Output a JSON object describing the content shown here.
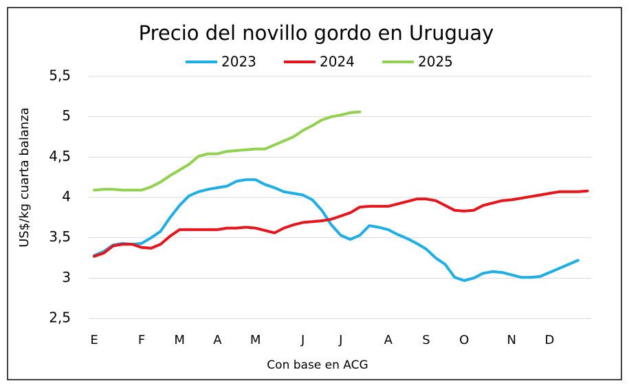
{
  "chart_data": {
    "type": "line",
    "title": "Precio del novillo gordo en Uruguay",
    "y_label": "US$/kg cuarta balanza",
    "x_label": "Con base en ACG",
    "categories": [
      "E",
      null,
      null,
      null,
      null,
      "F",
      null,
      null,
      null,
      "M",
      null,
      null,
      null,
      "A",
      null,
      null,
      null,
      "M",
      null,
      null,
      null,
      null,
      "J",
      null,
      null,
      null,
      "J",
      null,
      null,
      null,
      null,
      "A",
      null,
      null,
      null,
      "S",
      null,
      null,
      null,
      "O",
      null,
      null,
      null,
      null,
      "N",
      null,
      null,
      null,
      "D",
      null,
      null,
      null,
      null
    ],
    "series": [
      {
        "name": "2023",
        "color": "#1eaee6",
        "values": [
          3.28,
          3.33,
          3.41,
          3.43,
          3.42,
          3.43,
          3.5,
          3.58,
          3.75,
          3.9,
          4.02,
          4.07,
          4.1,
          4.12,
          4.14,
          4.2,
          4.22,
          4.22,
          4.16,
          4.12,
          4.07,
          4.05,
          4.03,
          3.97,
          3.84,
          3.66,
          3.53,
          3.48,
          3.53,
          3.65,
          3.63,
          3.6,
          3.54,
          3.49,
          3.43,
          3.36,
          3.25,
          3.17,
          3.01,
          2.97,
          3.0,
          3.06,
          3.08,
          3.07,
          3.04,
          3.01,
          3.01,
          3.02,
          3.07,
          3.12,
          3.17,
          3.22,
          null
        ]
      },
      {
        "name": "2024",
        "color": "#e8141b",
        "values": [
          3.27,
          3.31,
          3.4,
          3.42,
          3.42,
          3.38,
          3.37,
          3.42,
          3.52,
          3.6,
          3.6,
          3.6,
          3.6,
          3.6,
          3.62,
          3.62,
          3.63,
          3.62,
          3.59,
          3.56,
          3.62,
          3.66,
          3.69,
          3.7,
          3.71,
          3.73,
          3.77,
          3.81,
          3.88,
          3.89,
          3.89,
          3.89,
          3.92,
          3.95,
          3.98,
          3.98,
          3.96,
          3.9,
          3.84,
          3.83,
          3.84,
          3.9,
          3.93,
          3.96,
          3.97,
          3.99,
          4.01,
          4.03,
          4.05,
          4.07,
          4.07,
          4.07,
          4.08
        ]
      },
      {
        "name": "2025",
        "color": "#92d050",
        "values": [
          4.09,
          4.1,
          4.1,
          4.09,
          4.09,
          4.09,
          4.13,
          4.19,
          4.27,
          4.34,
          4.41,
          4.51,
          4.54,
          4.54,
          4.57,
          4.58,
          4.59,
          4.6,
          4.6,
          4.65,
          4.7,
          4.75,
          4.83,
          4.89,
          4.96,
          5.0,
          5.02,
          5.05,
          5.06,
          null,
          null,
          null,
          null,
          null,
          null,
          null,
          null,
          null,
          null,
          null,
          null,
          null,
          null,
          null,
          null,
          null,
          null,
          null,
          null,
          null,
          null,
          null,
          null
        ]
      }
    ],
    "ylim": [
      2.5,
      5.5
    ],
    "yticks": [
      {
        "value": 2.5,
        "label": "2,5"
      },
      3,
      {
        "value": 3.5,
        "label": "3,5"
      },
      4,
      {
        "value": 4.5,
        "label": "4,5"
      },
      5,
      {
        "value": 5.5,
        "label": "5,5"
      }
    ],
    "grid": true
  }
}
